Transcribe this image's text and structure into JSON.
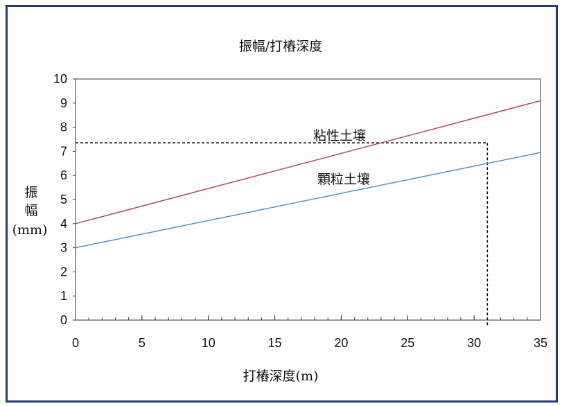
{
  "chart_data": {
    "type": "line",
    "title": "振幅/打樁深度",
    "xlabel": "打樁深度(m)",
    "ylabel": "振幅(mm)",
    "ylabel_lines": [
      "振",
      "幅",
      "(mm)"
    ],
    "xlim": [
      0,
      35
    ],
    "ylim": [
      0,
      10
    ],
    "xticks": [
      0,
      5,
      10,
      15,
      20,
      25,
      30,
      35
    ],
    "yticks": [
      0,
      1,
      2,
      3,
      4,
      5,
      6,
      7,
      8,
      9,
      10
    ],
    "grid": false,
    "series": [
      {
        "name": "粘性土壤",
        "color": "#b04a5a",
        "x": [
          0,
          35
        ],
        "y": [
          4.0,
          9.1
        ]
      },
      {
        "name": "顆粒土壤",
        "color": "#5b8fc2",
        "x": [
          0,
          35
        ],
        "y": [
          3.0,
          6.95
        ]
      }
    ],
    "reference_line": {
      "x": 31,
      "y": 7.35,
      "style": "dashed",
      "color": "#111111"
    }
  }
}
